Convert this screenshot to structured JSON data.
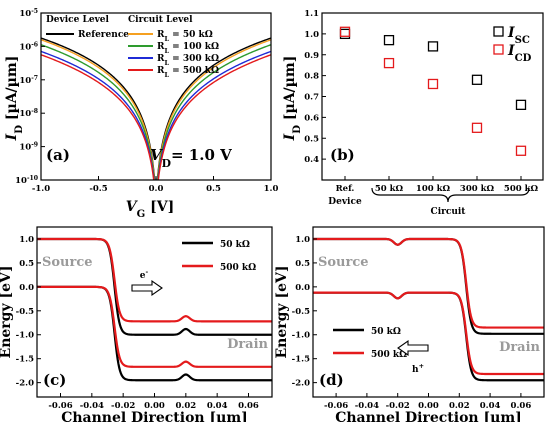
{
  "chart_data": [
    {
      "type": "line",
      "panel": "(a)",
      "xlabel": "V_G [V]",
      "ylabel": "I_D [µA/µm]",
      "xlim": [
        -1.0,
        1.0
      ],
      "ylim_log10": [
        -10,
        -5
      ],
      "yscale": "log",
      "x_ticks": [
        "-1.0",
        "-0.5",
        "0.0",
        "0.5",
        "1.0"
      ],
      "y_ticks": [
        "10⁻¹⁰",
        "10⁻⁹",
        "10⁻⁸",
        "10⁻⁷",
        "10⁻⁶",
        "10⁻⁵"
      ],
      "annotation": "V_D= 1.0 V",
      "legend_groups": [
        "Device Level",
        "Circuit Level"
      ],
      "legend": [
        {
          "name": "Reference",
          "color": "#000000"
        },
        {
          "name": "R_L = 50 kΩ",
          "color": "#f5a020"
        },
        {
          "name": "R_L = 100 kΩ",
          "color": "#2e9b2e"
        },
        {
          "name": "R_L = 300 kΩ",
          "color": "#1f2bd6"
        },
        {
          "name": "R_L = 500 kΩ",
          "color": "#e41a1c"
        }
      ],
      "series": [
        {
          "name": "Reference",
          "color": "#000000",
          "peak_log10": -5.75
        },
        {
          "name": "R_L = 50 kΩ",
          "color": "#f5a020",
          "peak_log10": -5.8
        },
        {
          "name": "R_L = 100 kΩ",
          "color": "#2e9b2e",
          "peak_log10": -5.95
        },
        {
          "name": "R_L = 300 kΩ",
          "color": "#1f2bd6",
          "peak_log10": -6.15
        },
        {
          "name": "R_L = 500 kΩ",
          "color": "#e41a1c",
          "peak_log10": -6.25
        }
      ]
    },
    {
      "type": "scatter",
      "panel": "(b)",
      "ylabel": "I_D [µA/µm]",
      "ylim": [
        0.3,
        1.1
      ],
      "y_ticks": [
        "0.4",
        "0.5",
        "0.6",
        "0.7",
        "0.8",
        "0.9",
        "1.0",
        "1.1"
      ],
      "categories": [
        "Ref.",
        "50 kΩ",
        "100 kΩ",
        "300 kΩ",
        "500 kΩ"
      ],
      "group_labels": [
        "Device",
        "Circuit"
      ],
      "series": [
        {
          "name": "I_SC",
          "color": "#000000",
          "values": [
            1.0,
            0.97,
            0.94,
            0.78,
            0.66
          ]
        },
        {
          "name": "I_CD",
          "color": "#e41a1c",
          "values": [
            1.01,
            0.86,
            0.76,
            0.55,
            0.44
          ]
        }
      ]
    },
    {
      "type": "line",
      "panel": "(c)",
      "xlabel": "Channel Direction [µm]",
      "ylabel": "Energy [eV]",
      "xlim": [
        -0.075,
        0.075
      ],
      "ylim": [
        -2.3,
        1.25
      ],
      "x_ticks": [
        "-0.06",
        "-0.04",
        "-0.02",
        "0.00",
        "0.02",
        "0.04",
        "0.06"
      ],
      "y_ticks": [
        "-2.0",
        "-1.5",
        "-1.0",
        "-0.5",
        "0.0",
        "0.5",
        "1.0"
      ],
      "labels": {
        "source": "Source",
        "drain": "Drain",
        "carrier": "e⁻"
      },
      "legend": [
        {
          "name": "50 kΩ",
          "color": "#000000"
        },
        {
          "name": "500 kΩ",
          "color": "#e41a1c"
        }
      ],
      "series": [
        {
          "name": "50 kΩ",
          "color": "#000000",
          "bands": [
            {
              "left": 1.0,
              "right": -1.0
            },
            {
              "left": 0.0,
              "right": -1.95
            }
          ]
        },
        {
          "name": "500 kΩ",
          "color": "#e41a1c",
          "bands": [
            {
              "left": 1.0,
              "right": -0.72
            },
            {
              "left": 0.0,
              "right": -1.67
            }
          ]
        }
      ]
    },
    {
      "type": "line",
      "panel": "(d)",
      "xlabel": "Channel Direction [µm]",
      "ylabel": "Energy [eV]",
      "xlim": [
        -0.075,
        0.075
      ],
      "ylim": [
        -2.3,
        1.25
      ],
      "x_ticks": [
        "-0.06",
        "-0.04",
        "-0.02",
        "0.00",
        "0.02",
        "0.04",
        "0.06"
      ],
      "y_ticks": [
        "-2.0",
        "-1.5",
        "-1.0",
        "-0.5",
        "0.0",
        "0.5",
        "1.0"
      ],
      "labels": {
        "source": "Source",
        "drain": "Drain",
        "carrier": "h⁺"
      },
      "legend": [
        {
          "name": "50 kΩ",
          "color": "#000000"
        },
        {
          "name": "500 kΩ",
          "color": "#e41a1c"
        }
      ],
      "series": [
        {
          "name": "50 kΩ",
          "color": "#000000",
          "bands": [
            {
              "left": 1.0,
              "right": -0.98
            },
            {
              "left": -0.12,
              "right": -1.95
            }
          ]
        },
        {
          "name": "500 kΩ",
          "color": "#e41a1c",
          "bands": [
            {
              "left": 1.0,
              "right": -0.85
            },
            {
              "left": -0.12,
              "right": -1.82
            }
          ]
        }
      ]
    }
  ],
  "panel_b_legend_sc": "I_SC",
  "panel_b_legend_cd": "I_CD",
  "panel_a_vd": "V_D= 1.0 V"
}
